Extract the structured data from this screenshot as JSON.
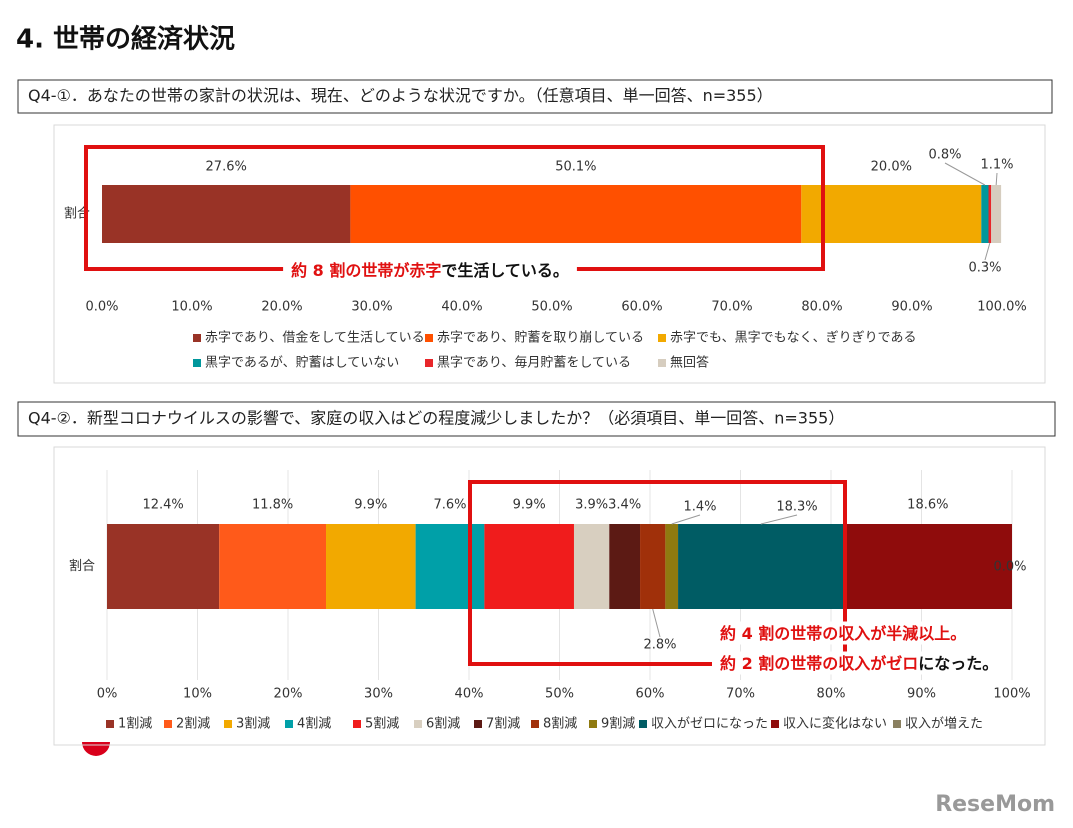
{
  "heading": "4. 世帯の経済状況",
  "watermark": "ReseMom",
  "chart_data": [
    {
      "type": "bar",
      "orientation": "horizontal",
      "stacked": true,
      "title": "Q4-①．あなたの世帯の家計の状況は、現在、どのような状況ですか。（任意項目、単一回答、n=355）",
      "categories": [
        "割合"
      ],
      "series": [
        {
          "name": "赤字であり、借金をして生活している",
          "color": "#993326",
          "values": [
            27.6
          ],
          "value_labels": [
            "27.6%"
          ]
        },
        {
          "name": "赤字であり、貯蓄を取り崩している",
          "color": "#ff5000",
          "values": [
            50.1
          ],
          "value_labels": [
            "50.1%"
          ]
        },
        {
          "name": "赤字でも、黒字でもなく、ぎりぎりである",
          "color": "#f2a900",
          "values": [
            20.0
          ],
          "value_labels": [
            "20.0%"
          ]
        },
        {
          "name": "黒字であるが、貯蓄はしていない",
          "color": "#00979c",
          "values": [
            0.8
          ],
          "value_labels": [
            "0.8%"
          ]
        },
        {
          "name": "黒字であり、毎月貯蓄をしている",
          "color": "#e8262a",
          "values": [
            0.3
          ],
          "value_labels": [
            "0.3%"
          ]
        },
        {
          "name": "無回答",
          "color": "#d6cdbf",
          "values": [
            1.1
          ],
          "value_labels": [
            "1.1%"
          ]
        }
      ],
      "xlim": [
        0,
        100
      ],
      "xticks": [
        {
          "value": 0,
          "label": "0.0%"
        },
        {
          "value": 10,
          "label": "10.0%"
        },
        {
          "value": 20,
          "label": "20.0%"
        },
        {
          "value": 30,
          "label": "30.0%"
        },
        {
          "value": 40,
          "label": "40.0%"
        },
        {
          "value": 50,
          "label": "50.0%"
        },
        {
          "value": 60,
          "label": "60.0%"
        },
        {
          "value": 70,
          "label": "70.0%"
        },
        {
          "value": 80,
          "label": "80.0%"
        },
        {
          "value": 90,
          "label": "90.0%"
        },
        {
          "value": 100,
          "label": "100.0%"
        }
      ],
      "grid": false,
      "annotations": [
        {
          "red": "約 8 割の世帯が赤字",
          "black": "で生活している。"
        }
      ]
    },
    {
      "type": "bar",
      "orientation": "horizontal",
      "stacked": true,
      "title": "Q4-②．新型コロナウイルスの影響で、家庭の収入はどの程度減少しましたか？（必須項目、単一回答、n=355）",
      "categories": [
        "割合"
      ],
      "series": [
        {
          "name": "1割減",
          "color": "#993326",
          "values": [
            12.4
          ],
          "value_labels": [
            "12.4%"
          ]
        },
        {
          "name": "2割減",
          "color": "#ff5a1a",
          "values": [
            11.8
          ],
          "value_labels": [
            "11.8%"
          ]
        },
        {
          "name": "3割減",
          "color": "#f2a900",
          "values": [
            9.9
          ],
          "value_labels": [
            "9.9%"
          ]
        },
        {
          "name": "4割減",
          "color": "#00a0a8",
          "values": [
            7.6
          ],
          "value_labels": [
            "7.6%"
          ]
        },
        {
          "name": "5割減",
          "color": "#f01c1c",
          "values": [
            9.9
          ],
          "value_labels": [
            "9.9%"
          ]
        },
        {
          "name": "6割減",
          "color": "#d8cfc0",
          "values": [
            3.9
          ],
          "value_labels": [
            "3.9%"
          ]
        },
        {
          "name": "7割減",
          "color": "#5c1a14",
          "values": [
            3.4
          ],
          "value_labels": [
            "3.4%"
          ]
        },
        {
          "name": "8割減",
          "color": "#a0300a",
          "values": [
            2.8
          ],
          "value_labels": [
            "2.8%"
          ]
        },
        {
          "name": "9割減",
          "color": "#8f7a10",
          "values": [
            1.4
          ],
          "value_labels": [
            "1.4%"
          ]
        },
        {
          "name": "収入がゼロになった",
          "color": "#005c64",
          "values": [
            18.3
          ],
          "value_labels": [
            "18.3%"
          ]
        },
        {
          "name": "収入に変化はない",
          "color": "#8f0c0c",
          "values": [
            18.6
          ],
          "value_labels": [
            "18.6%"
          ]
        },
        {
          "name": "収入が増えた",
          "color": "#8a8060",
          "values": [
            0.0
          ],
          "value_labels": [
            "0.0%"
          ]
        }
      ],
      "xlim": [
        0,
        100
      ],
      "xticks": [
        {
          "value": 0,
          "label": "0%"
        },
        {
          "value": 10,
          "label": "10%"
        },
        {
          "value": 20,
          "label": "20%"
        },
        {
          "value": 30,
          "label": "30%"
        },
        {
          "value": 40,
          "label": "40%"
        },
        {
          "value": 50,
          "label": "50%"
        },
        {
          "value": 60,
          "label": "60%"
        },
        {
          "value": 70,
          "label": "70%"
        },
        {
          "value": 80,
          "label": "80%"
        },
        {
          "value": 90,
          "label": "90%"
        },
        {
          "value": 100,
          "label": "100%"
        }
      ],
      "grid": true,
      "annotations": [
        {
          "red": "約 4 割の世帯の収入が半減以上。"
        },
        {
          "red": "約 2 割の世帯の収入がゼロ",
          "black": "になった。"
        }
      ]
    }
  ]
}
